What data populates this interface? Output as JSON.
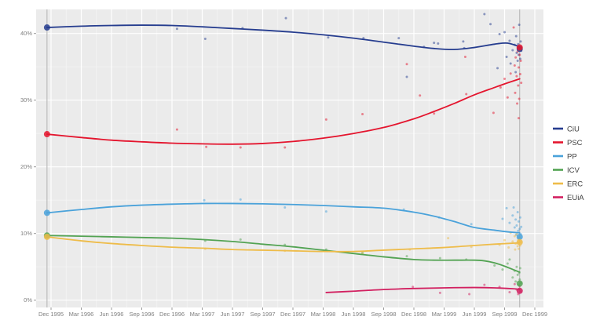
{
  "chart_data": {
    "type": "line",
    "title": "",
    "description_visible_text_only": "",
    "x_axis": {
      "unit": "months since Dec 1995",
      "tick_months": [
        0,
        3,
        6,
        9,
        12,
        15,
        18,
        21,
        24,
        27,
        30,
        33,
        36,
        39,
        42,
        45,
        48
      ],
      "tick_labels": [
        "Dec 1995",
        "Mar 1996",
        "Jun 1996",
        "Sep 1996",
        "Dec 1996",
        "Mar 1997",
        "Jun 1997",
        "Sep 1997",
        "Dec 1997",
        "Mar 1998",
        "Jun 1998",
        "Sep 1998",
        "Dec 1998",
        "Mar 1999",
        "Jun 1999",
        "Sep 1999",
        "Dec 1999"
      ],
      "range_months": [
        -1.5,
        48.9
      ]
    },
    "y_axis": {
      "tick_values": [
        0,
        10,
        20,
        30,
        40
      ],
      "tick_labels": [
        "0%",
        "10%",
        "20%",
        "30%",
        "40%"
      ],
      "range": [
        0,
        43.6
      ],
      "minor_tick_values": [
        5,
        15,
        25,
        35
      ]
    },
    "grid": true,
    "legend_position": "right",
    "election_lines_months": [
      -0.4,
      46.5
    ],
    "series": [
      {
        "name": "CiU",
        "color": "#263d8f",
        "trend": [
          [
            -0.4,
            40.9
          ],
          [
            3,
            41.1
          ],
          [
            6,
            41.2
          ],
          [
            9,
            41.25
          ],
          [
            12,
            41.2
          ],
          [
            15,
            41.0
          ],
          [
            18,
            40.75
          ],
          [
            21,
            40.5
          ],
          [
            24,
            40.2
          ],
          [
            27,
            39.8
          ],
          [
            30,
            39.3
          ],
          [
            33,
            38.7
          ],
          [
            36,
            38.1
          ],
          [
            38,
            37.75
          ],
          [
            40,
            37.6
          ],
          [
            42,
            37.9
          ],
          [
            44,
            38.4
          ],
          [
            45.3,
            38.55
          ],
          [
            46.5,
            38.0
          ]
        ],
        "polls": [
          [
            12.5,
            40.7
          ],
          [
            15.3,
            39.2
          ],
          [
            19,
            40.8
          ],
          [
            23.3,
            42.3
          ],
          [
            27.5,
            39.4
          ],
          [
            31,
            39.3
          ],
          [
            34.5,
            39.3
          ],
          [
            35.3,
            33.5
          ],
          [
            37,
            38.0
          ],
          [
            38,
            38.6
          ],
          [
            38.4,
            38.5
          ],
          [
            40.9,
            38.8
          ],
          [
            41,
            37.8
          ],
          [
            43,
            42.9
          ],
          [
            43.6,
            41.4
          ],
          [
            44.3,
            34.8
          ],
          [
            44.5,
            39.9
          ],
          [
            45,
            40.2
          ],
          [
            45.2,
            36.5
          ],
          [
            45.5,
            38.9
          ],
          [
            45.6,
            35.5
          ],
          [
            45.8,
            37.5
          ],
          [
            46,
            38.3
          ],
          [
            46.1,
            34.2
          ],
          [
            46.15,
            39.6
          ],
          [
            46.2,
            37.1
          ],
          [
            46.3,
            35.9
          ],
          [
            46.35,
            38.4
          ],
          [
            46.4,
            36.8
          ],
          [
            46.45,
            41.3
          ],
          [
            46.5,
            37.9
          ],
          [
            46.55,
            36.2
          ],
          [
            46.6,
            38.8
          ],
          [
            46.65,
            37.4
          ]
        ]
      },
      {
        "name": "PSC",
        "color": "#e4152e",
        "trend": [
          [
            -0.4,
            24.9
          ],
          [
            3,
            24.4
          ],
          [
            6,
            24.0
          ],
          [
            9,
            23.75
          ],
          [
            12,
            23.55
          ],
          [
            15,
            23.45
          ],
          [
            18,
            23.4
          ],
          [
            21,
            23.5
          ],
          [
            24,
            23.8
          ],
          [
            27,
            24.3
          ],
          [
            30,
            25.0
          ],
          [
            33,
            25.9
          ],
          [
            36,
            27.2
          ],
          [
            38,
            28.3
          ],
          [
            40,
            29.5
          ],
          [
            42,
            30.8
          ],
          [
            44,
            31.9
          ],
          [
            45.3,
            32.6
          ],
          [
            46.5,
            33.2
          ]
        ],
        "polls": [
          [
            12.5,
            25.6
          ],
          [
            15.4,
            23.0
          ],
          [
            18.8,
            22.9
          ],
          [
            23.2,
            22.9
          ],
          [
            27.3,
            27.1
          ],
          [
            30.9,
            27.9
          ],
          [
            35.3,
            35.4
          ],
          [
            36.6,
            30.7
          ],
          [
            38,
            28.0
          ],
          [
            41.1,
            36.5
          ],
          [
            41.2,
            30.9
          ],
          [
            43.9,
            28.1
          ],
          [
            44.6,
            31.9
          ],
          [
            45,
            33.2
          ],
          [
            45.3,
            30.4
          ],
          [
            45.6,
            34.0
          ],
          [
            45.9,
            40.9
          ],
          [
            46,
            35.2
          ],
          [
            46.05,
            31.1
          ],
          [
            46.1,
            36.4
          ],
          [
            46.2,
            33.6
          ],
          [
            46.25,
            29.5
          ],
          [
            46.3,
            37.3
          ],
          [
            46.35,
            32.2
          ],
          [
            46.4,
            27.3
          ],
          [
            46.4,
            34.9
          ],
          [
            46.45,
            30.2
          ],
          [
            46.5,
            36.8
          ],
          [
            46.55,
            33.9
          ],
          [
            46.6,
            35.9
          ],
          [
            46.65,
            32.6
          ]
        ]
      },
      {
        "name": "PP",
        "color": "#4aa2da",
        "trend": [
          [
            -0.4,
            13.1
          ],
          [
            3,
            13.6
          ],
          [
            6,
            14.0
          ],
          [
            9,
            14.25
          ],
          [
            12,
            14.4
          ],
          [
            15,
            14.5
          ],
          [
            18,
            14.5
          ],
          [
            21,
            14.45
          ],
          [
            24,
            14.35
          ],
          [
            27,
            14.2
          ],
          [
            30,
            14.0
          ],
          [
            33,
            13.8
          ],
          [
            36,
            13.2
          ],
          [
            38,
            12.6
          ],
          [
            40,
            11.8
          ],
          [
            42,
            10.9
          ],
          [
            44,
            10.5
          ],
          [
            45.3,
            10.25
          ],
          [
            46.5,
            10.1
          ]
        ],
        "polls": [
          [
            15.2,
            15.0
          ],
          [
            18.8,
            15.1
          ],
          [
            23.2,
            13.9
          ],
          [
            27.3,
            13.3
          ],
          [
            35,
            13.6
          ],
          [
            38.5,
            12.4
          ],
          [
            41.7,
            11.4
          ],
          [
            44.8,
            12.2
          ],
          [
            45.2,
            13.8
          ],
          [
            45.5,
            11.6
          ],
          [
            45.8,
            12.7
          ],
          [
            45.9,
            13.9
          ],
          [
            46,
            10.9
          ],
          [
            46.1,
            12.1
          ],
          [
            46.15,
            9.8
          ],
          [
            46.2,
            11.2
          ],
          [
            46.3,
            13.2
          ],
          [
            46.35,
            10.4
          ],
          [
            46.4,
            11.8
          ],
          [
            46.45,
            9.4
          ],
          [
            46.5,
            10.7
          ],
          [
            46.55,
            12.4
          ],
          [
            46.6,
            9.9
          ],
          [
            46.65,
            11.0
          ]
        ]
      },
      {
        "name": "ICV",
        "color": "#53a353",
        "trend": [
          [
            -0.4,
            9.7
          ],
          [
            3,
            9.6
          ],
          [
            6,
            9.5
          ],
          [
            9,
            9.4
          ],
          [
            12,
            9.3
          ],
          [
            15,
            9.1
          ],
          [
            18,
            8.8
          ],
          [
            21,
            8.4
          ],
          [
            24,
            8.0
          ],
          [
            27,
            7.5
          ],
          [
            30,
            7.0
          ],
          [
            33,
            6.5
          ],
          [
            36,
            6.1
          ],
          [
            38,
            6.0
          ],
          [
            40,
            6.0
          ],
          [
            42,
            6.0
          ],
          [
            43,
            5.9
          ],
          [
            44,
            5.6
          ],
          [
            45,
            5.1
          ],
          [
            46,
            4.5
          ],
          [
            46.5,
            4.2
          ]
        ],
        "polls": [
          [
            15.3,
            8.9
          ],
          [
            18.8,
            9.1
          ],
          [
            23.2,
            8.3
          ],
          [
            27.3,
            7.6
          ],
          [
            30.9,
            7.1
          ],
          [
            35.3,
            6.6
          ],
          [
            38.6,
            6.3
          ],
          [
            41.2,
            6.1
          ],
          [
            44,
            5.2
          ],
          [
            44.8,
            4.6
          ],
          [
            45.3,
            5.5
          ],
          [
            45.5,
            6.1
          ],
          [
            45.8,
            3.4
          ],
          [
            46,
            4.4
          ],
          [
            46.1,
            2.8
          ],
          [
            46.2,
            5.0
          ],
          [
            46.3,
            3.8
          ],
          [
            46.4,
            2.3
          ],
          [
            46.45,
            4.1
          ],
          [
            46.5,
            3.1
          ],
          [
            46.55,
            4.8
          ],
          [
            46.6,
            2.6
          ]
        ]
      },
      {
        "name": "ERC",
        "color": "#eebc4a",
        "trend": [
          [
            -0.4,
            9.5
          ],
          [
            3,
            8.9
          ],
          [
            6,
            8.5
          ],
          [
            9,
            8.2
          ],
          [
            12,
            7.95
          ],
          [
            15,
            7.8
          ],
          [
            18,
            7.6
          ],
          [
            21,
            7.5
          ],
          [
            24,
            7.4
          ],
          [
            27,
            7.3
          ],
          [
            30,
            7.3
          ],
          [
            33,
            7.5
          ],
          [
            36,
            7.7
          ],
          [
            39,
            7.9
          ],
          [
            42,
            8.2
          ],
          [
            44,
            8.4
          ],
          [
            46.5,
            8.6
          ]
        ],
        "polls": [
          [
            15.3,
            7.7
          ],
          [
            23.2,
            7.4
          ],
          [
            30.9,
            7.0
          ],
          [
            35.6,
            7.6
          ],
          [
            39.4,
            9.3
          ],
          [
            41.7,
            8.0
          ],
          [
            44.5,
            8.3
          ],
          [
            45,
            9.0
          ],
          [
            45.4,
            7.9
          ],
          [
            45.6,
            10.1
          ],
          [
            45.8,
            8.8
          ],
          [
            46,
            9.6
          ],
          [
            46.05,
            7.6
          ],
          [
            46.1,
            8.5
          ],
          [
            46.2,
            9.9
          ],
          [
            46.3,
            8.1
          ],
          [
            46.35,
            9.2
          ],
          [
            46.4,
            7.7
          ],
          [
            46.45,
            8.9
          ],
          [
            46.5,
            9.4
          ],
          [
            46.55,
            8.2
          ],
          [
            46.6,
            8.7
          ]
        ]
      },
      {
        "name": "EUiA",
        "color": "#d22060",
        "trend": [
          [
            27.3,
            1.15
          ],
          [
            30,
            1.35
          ],
          [
            33,
            1.6
          ],
          [
            36,
            1.75
          ],
          [
            39,
            1.85
          ],
          [
            42,
            1.9
          ],
          [
            44,
            1.85
          ],
          [
            46,
            1.7
          ],
          [
            46.5,
            1.6
          ]
        ],
        "polls": [
          [
            35.9,
            2.0
          ],
          [
            38.6,
            1.1
          ],
          [
            41.5,
            0.9
          ],
          [
            43,
            2.3
          ],
          [
            44.5,
            2.0
          ],
          [
            45.5,
            1.2
          ],
          [
            46,
            2.4
          ],
          [
            46.2,
            1.6
          ],
          [
            46.35,
            0.9
          ],
          [
            46.5,
            2.1
          ],
          [
            46.6,
            1.3
          ]
        ]
      }
    ],
    "election_markers": [
      {
        "x_month": -0.4,
        "results": {
          "CiU": 40.9,
          "PSC": 24.9,
          "PP": 13.1,
          "ICV": 9.7,
          "ERC": 9.5
        }
      },
      {
        "x_month": 46.5,
        "results": {
          "CiU": 37.7,
          "PSC": 37.9,
          "PP": 9.5,
          "ERC": 8.7,
          "ICV": 2.5,
          "EUiA": 1.4
        }
      }
    ]
  },
  "legend": {
    "items": [
      "CiU",
      "PSC",
      "PP",
      "ICV",
      "ERC",
      "EUiA"
    ]
  },
  "colors": {
    "page_background": "#ffffff",
    "plot_background": "#ebebeb",
    "grid_major": "#ffffff",
    "grid_minor": "#f4f4f4",
    "axis_text": "#7f7f7f",
    "tick_mark": "#9a9a9a",
    "election_line": "#b0b0b0",
    "legend_text": "#3f3f3f"
  }
}
